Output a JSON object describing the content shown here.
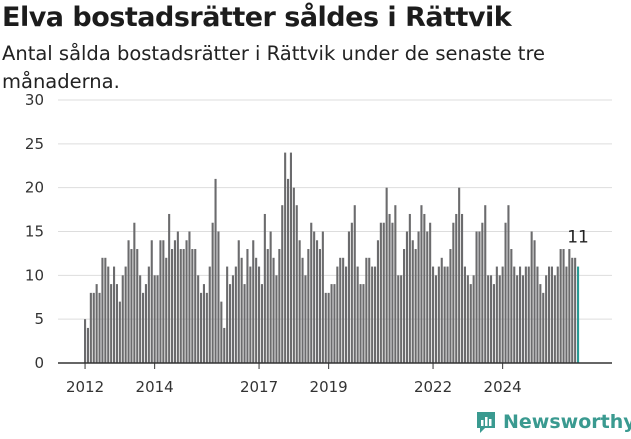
{
  "header": {
    "title": "Elva bostadsrätter såldes i Rättvik",
    "subtitle": "Antal sålda bostadsrätter i Rättvik under de senaste tre månaderna."
  },
  "brand": {
    "name": "Newsworthy",
    "icon": "newsworthy-logo-icon",
    "color": "#3a9a90"
  },
  "chart_data": {
    "type": "bar",
    "title": "Elva bostadsrätter såldes i Rättvik",
    "subtitle": "Antal sålda bostadsrätter i Rättvik under de senaste tre månaderna.",
    "xlabel": "",
    "ylabel": "",
    "ylim": [
      0,
      30
    ],
    "y_ticks": [
      0,
      5,
      10,
      15,
      20,
      25,
      30
    ],
    "x_ticks": [
      "2012",
      "2014",
      "2017",
      "2019",
      "2022",
      "2024"
    ],
    "grid": true,
    "bar_color": "#6b6b6d",
    "highlight_color": "#2a9a94",
    "highlight_label": "11",
    "series": [
      {
        "values": [
          5,
          4,
          8,
          8,
          9,
          8,
          12,
          12,
          11,
          9,
          11,
          9,
          7,
          10,
          11,
          14,
          13,
          16,
          13,
          10,
          8,
          9,
          11,
          14,
          10,
          10,
          14,
          14,
          12,
          17,
          13,
          14,
          15,
          13,
          13,
          14,
          15,
          13,
          13,
          10,
          8,
          9,
          8,
          11,
          16,
          21,
          15,
          7,
          4,
          11,
          9,
          10,
          11,
          14,
          12,
          9,
          13,
          11,
          14,
          12,
          11,
          9,
          17,
          13,
          15,
          12,
          10,
          13,
          18,
          24,
          21,
          24,
          20,
          18,
          14,
          12,
          10,
          13,
          16,
          15,
          14,
          13,
          15,
          8,
          8,
          9,
          9,
          11,
          12,
          12,
          11,
          15,
          16,
          18,
          11,
          9,
          9,
          12,
          12,
          11,
          11,
          14,
          16,
          16,
          20,
          17,
          16,
          18,
          10,
          10,
          13,
          15,
          17,
          14,
          13,
          15,
          18,
          17,
          15,
          16,
          11,
          10,
          11,
          12,
          11,
          11,
          13,
          16,
          17,
          20,
          17,
          11,
          10,
          9,
          10,
          15,
          15,
          16,
          18,
          10,
          10,
          9,
          11,
          10,
          11,
          16,
          18,
          13,
          11,
          10,
          11,
          10,
          11,
          11,
          15,
          14,
          11,
          9,
          8,
          10,
          11,
          11,
          10,
          11,
          13,
          13,
          11,
          13,
          12,
          12,
          11
        ]
      }
    ]
  }
}
